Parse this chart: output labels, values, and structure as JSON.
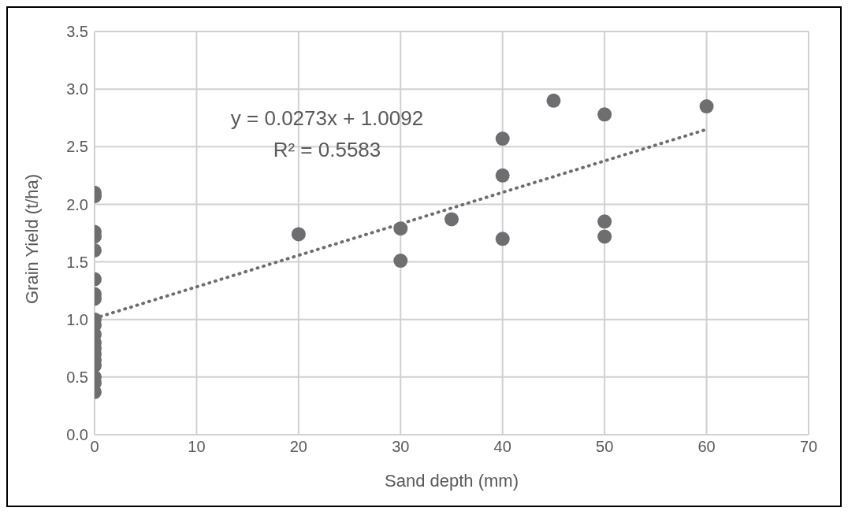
{
  "chart_data": {
    "type": "scatter",
    "xlabel": "Sand depth (mm)",
    "ylabel": "Grain Yield (t/ha)",
    "xlim": [
      0,
      70
    ],
    "xticks": [
      0,
      10,
      20,
      30,
      40,
      50,
      60,
      70
    ],
    "ylim": [
      0,
      3.5
    ],
    "yticks": [
      {
        "value": 0,
        "label": "0.0"
      },
      {
        "value": 0.5,
        "label": "0.5"
      },
      {
        "value": 1,
        "label": "1.0"
      },
      {
        "value": 1.5,
        "label": "1.5"
      },
      {
        "value": 2,
        "label": "2.0"
      },
      {
        "value": 2.5,
        "label": "2.5"
      },
      {
        "value": 3,
        "label": "3.0"
      },
      {
        "value": 3.5,
        "label": "3.5"
      }
    ],
    "grid": true,
    "legend": false,
    "series": [
      {
        "color": "#6e6e70",
        "marker": "circle",
        "x": [
          0,
          0,
          0,
          0,
          0,
          0,
          0,
          0,
          0,
          0,
          0,
          0,
          0,
          0,
          0,
          0,
          0,
          0,
          0,
          20,
          30,
          30,
          35,
          40,
          40,
          40,
          45,
          50,
          50,
          50,
          60
        ],
        "values": [
          2.1,
          2.07,
          1.76,
          1.72,
          1.6,
          1.35,
          1.22,
          1.18,
          1.0,
          0.95,
          0.87,
          0.8,
          0.75,
          0.7,
          0.65,
          0.6,
          0.5,
          0.45,
          0.37,
          1.74,
          1.79,
          1.51,
          1.87,
          2.57,
          2.25,
          1.7,
          2.9,
          2.78,
          1.85,
          1.72,
          2.85
        ]
      },
      {
        "type": "line",
        "color": "#6e6e70",
        "line_style": "dotted",
        "marker": "none",
        "x": [
          0,
          60
        ],
        "values": [
          1.01,
          2.65
        ]
      }
    ],
    "annotations": [
      "y = 0.0273x + 1.0092",
      "R² = 0.5583"
    ]
  }
}
